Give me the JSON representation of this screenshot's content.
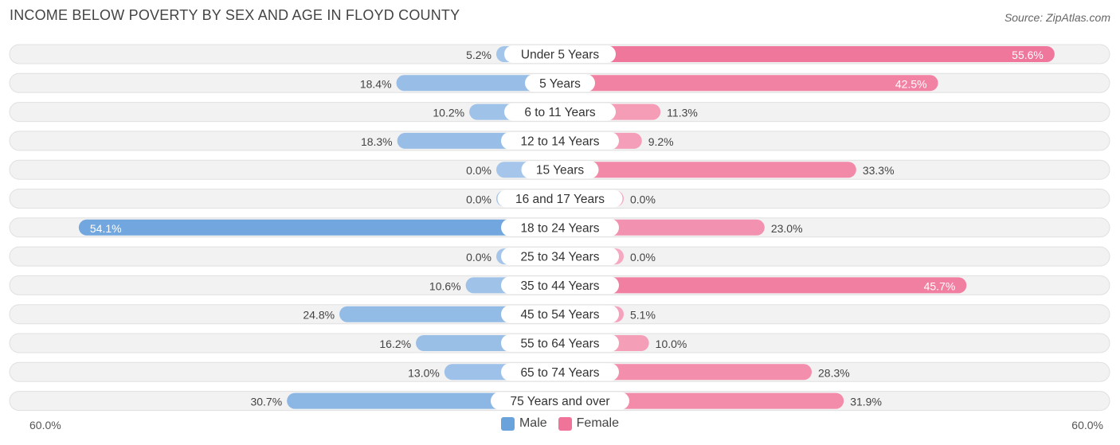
{
  "title": "INCOME BELOW POVERTY BY SEX AND AGE IN FLOYD COUNTY",
  "source": "Source: ZipAtlas.com",
  "colors": {
    "male_strong": "#6aa2dc",
    "male_light": "#a5c6ea",
    "female_strong": "#f07499",
    "female_light": "#f6a8c0",
    "row_bg": "#f2f2f2",
    "row_border": "#e0e0e0"
  },
  "legend": {
    "male": "Male",
    "female": "Female"
  },
  "chart_data": {
    "type": "bar",
    "orientation": "horizontal-diverging",
    "title": "INCOME BELOW POVERTY BY SEX AND AGE IN FLOYD COUNTY",
    "categories": [
      "Under 5 Years",
      "5 Years",
      "6 to 11 Years",
      "12 to 14 Years",
      "15 Years",
      "16 and 17 Years",
      "18 to 24 Years",
      "25 to 34 Years",
      "35 to 44 Years",
      "45 to 54 Years",
      "55 to 64 Years",
      "65 to 74 Years",
      "75 Years and over"
    ],
    "series": [
      {
        "name": "Male",
        "values": [
          5.2,
          18.4,
          10.2,
          18.3,
          0.0,
          0.0,
          54.1,
          0.0,
          10.6,
          24.8,
          16.2,
          13.0,
          30.7
        ],
        "labels": [
          "5.2%",
          "18.4%",
          "10.2%",
          "18.3%",
          "0.0%",
          "0.0%",
          "54.1%",
          "0.0%",
          "10.6%",
          "24.8%",
          "16.2%",
          "13.0%",
          "30.7%"
        ]
      },
      {
        "name": "Female",
        "values": [
          55.6,
          42.5,
          11.3,
          9.2,
          33.3,
          0.0,
          23.0,
          0.0,
          45.7,
          5.1,
          10.0,
          28.3,
          31.9
        ],
        "labels": [
          "55.6%",
          "42.5%",
          "11.3%",
          "9.2%",
          "33.3%",
          "0.0%",
          "23.0%",
          "0.0%",
          "45.7%",
          "5.1%",
          "10.0%",
          "28.3%",
          "31.9%"
        ]
      }
    ],
    "xlim": [
      -60,
      60
    ],
    "axis_labels": {
      "left": "60.0%",
      "right": "60.0%"
    },
    "legend_position": "bottom-center"
  }
}
